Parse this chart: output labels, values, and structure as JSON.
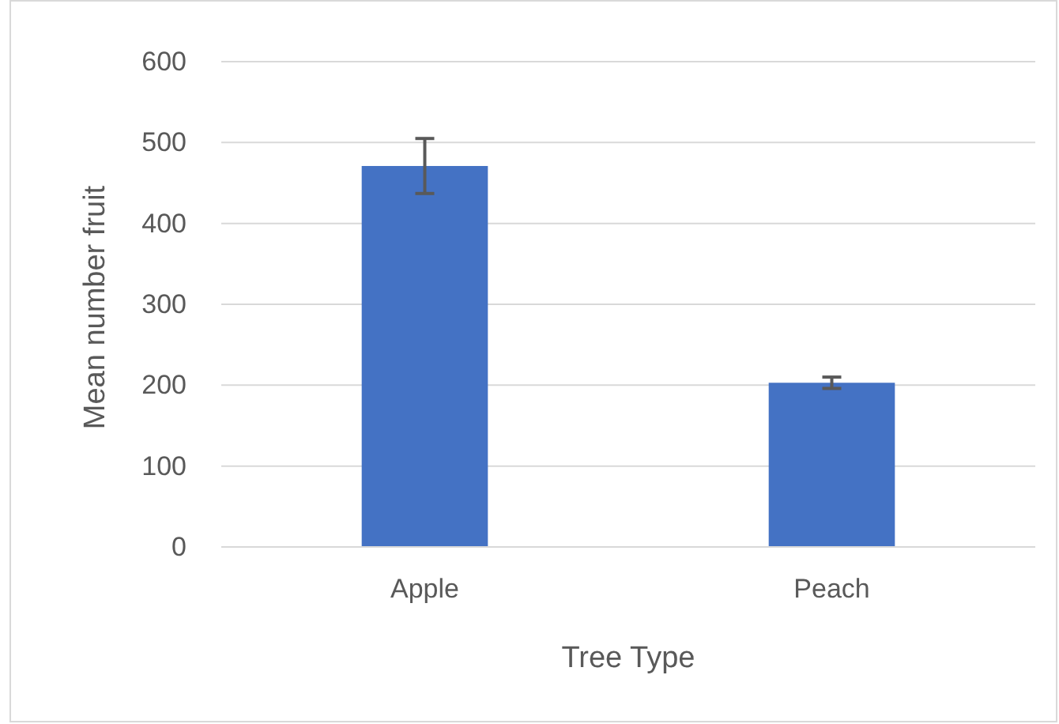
{
  "chart_data": {
    "type": "bar",
    "xlabel": "Tree Type",
    "ylabel": "Mean number fruit",
    "categories": [
      "Apple",
      "Peach"
    ],
    "values": [
      471,
      203
    ],
    "errors": [
      34,
      7
    ],
    "color": "#4472c4",
    "ylim": [
      0,
      600
    ],
    "yticks": [
      0,
      100,
      200,
      300,
      400,
      500,
      600
    ],
    "grid": "y"
  }
}
